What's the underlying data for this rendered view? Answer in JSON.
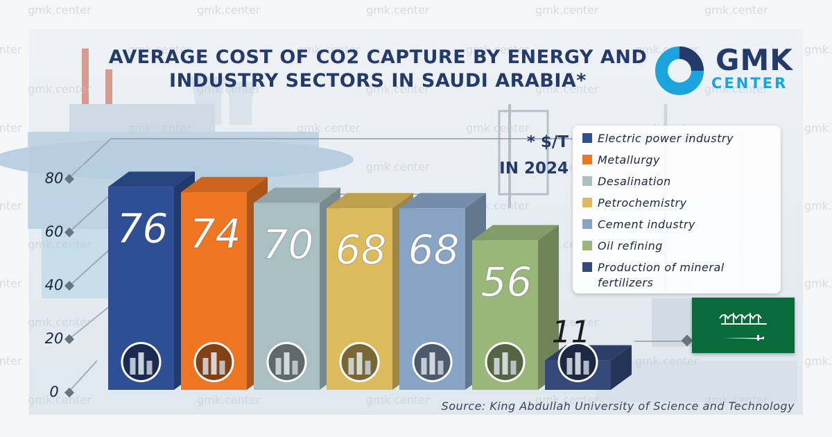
{
  "watermark": "gmk.center",
  "title": "AVERAGE COST OF CO2 CAPTURE BY ENERGY AND INDUSTRY SECTORS IN SAUDI ARABIA*",
  "title_lines": [
    "AVERAGE COST OF CO2 CAPTURE BY ENERGY AND",
    "INDUSTRY SECTORS IN SAUDI ARABIA*"
  ],
  "logo": {
    "line1": "GMK",
    "line2": "CENTER",
    "icon": "gmk-ring-logo-icon"
  },
  "unit_lines": [
    "* $/T",
    "IN 2024"
  ],
  "source": "Source:  King Abdullah University of Science and Technology",
  "flag": {
    "icon": "saudi-arabia-flag-icon",
    "color": "#0a6b3a"
  },
  "chart_data": {
    "type": "bar",
    "title": "AVERAGE COST OF CO2 CAPTURE BY ENERGY AND INDUSTRY SECTORS IN SAUDI ARABIA*",
    "categories": [
      "Electric power industry",
      "Metallurgy",
      "Desalination",
      "Petrochemistry",
      "Cement industry",
      "Oil refining",
      "Production of mineral fertilizers"
    ],
    "values": [
      76,
      74,
      70,
      68,
      68,
      56,
      11
    ],
    "value_labels": [
      "76",
      "74",
      "70",
      "68",
      "68",
      "56",
      "11"
    ],
    "colors": [
      "#2f4f94",
      "#ee7623",
      "#a9bfc2",
      "#dcbb5c",
      "#88a4c4",
      "#9ab779",
      "#34497a"
    ],
    "icons": [
      "power-lines-icon",
      "molten-metal-icon",
      "desalination-plant-icon",
      "petrochemical-plant-icon",
      "cement-plant-icon",
      "oil-refinery-icon",
      "fertilizer-plant-icon"
    ],
    "yticks": [
      "0",
      "20",
      "40",
      "60",
      "80"
    ],
    "ylim": [
      0,
      80
    ],
    "legend_position": "right",
    "legend": [
      {
        "label": "Electric power industry",
        "color": "#2f4f94"
      },
      {
        "label": "Metallurgy",
        "color": "#ee7623"
      },
      {
        "label": "Desalination",
        "color": "#a9bfc2"
      },
      {
        "label": "Petrochemistry",
        "color": "#dcbb5c"
      },
      {
        "label": "Cement industry",
        "color": "#88a4c4"
      },
      {
        "label": "Oil refining",
        "color": "#9ab779"
      },
      {
        "label": "Production of mineral fertilizers",
        "color": "#34497a"
      }
    ]
  }
}
